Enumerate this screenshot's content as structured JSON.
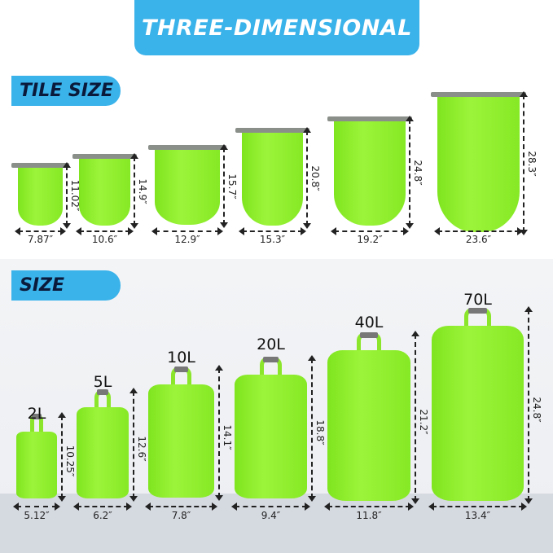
{
  "banner": {
    "title": "THREE-DIMENSIONAL"
  },
  "tile_section": {
    "label": "TILE SIZE",
    "bags": [
      {
        "width": "7.87″",
        "height": "11.02″"
      },
      {
        "width": "10.6″",
        "height": "14.9″"
      },
      {
        "width": "12.9″",
        "height": "15.7″"
      },
      {
        "width": "15.3″",
        "height": "20.8″"
      },
      {
        "width": "19.2″",
        "height": "24.8″"
      },
      {
        "width": "23.6″",
        "height": "28.3″"
      }
    ]
  },
  "size_section": {
    "label": "SIZE",
    "bags": [
      {
        "capacity": "2L",
        "width": "5.12″",
        "height": "10.25″"
      },
      {
        "capacity": "5L",
        "width": "6.2″",
        "height": "12.6″"
      },
      {
        "capacity": "10L",
        "width": "7.8″",
        "height": "14.1″"
      },
      {
        "capacity": "20L",
        "width": "9.4″",
        "height": "18.8″"
      },
      {
        "capacity": "40L",
        "width": "11.8″",
        "height": "21.2″"
      },
      {
        "capacity": "70L",
        "width": "13.4″",
        "height": "24.8″"
      }
    ]
  },
  "colors": {
    "accent": "#3ab2ea",
    "bag": "#8fee2e"
  }
}
